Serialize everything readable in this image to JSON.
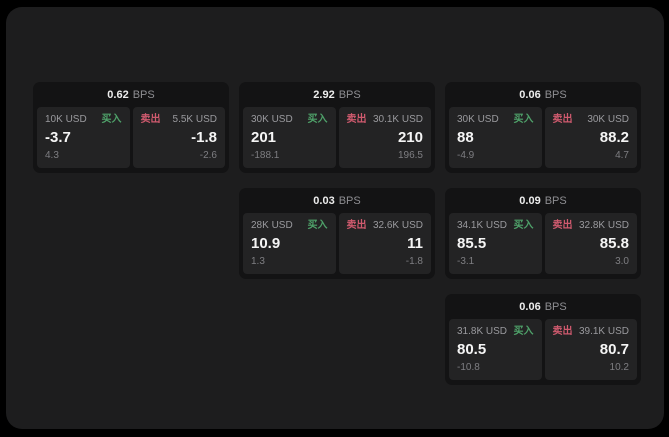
{
  "labels": {
    "bps_suffix": "BPS",
    "buy": "买入",
    "sell": "卖出"
  },
  "colors": {
    "buy": "#4fa26a",
    "sell": "#cf5a6e",
    "window_bg": "#1d1d1e",
    "card_bg": "#131314",
    "panel_bg": "#232324"
  },
  "cards": [
    {
      "row": 1,
      "col": 1,
      "bps": "0.62",
      "buy": {
        "amount": "10K USD",
        "value": "-3.7",
        "delta": "4.3"
      },
      "sell": {
        "amount": "5.5K USD",
        "value": "-1.8",
        "delta": "-2.6"
      }
    },
    {
      "row": 1,
      "col": 2,
      "bps": "2.92",
      "buy": {
        "amount": "30K USD",
        "value": "201",
        "delta": "-188.1"
      },
      "sell": {
        "amount": "30.1K USD",
        "value": "210",
        "delta": "196.5"
      }
    },
    {
      "row": 1,
      "col": 3,
      "bps": "0.06",
      "buy": {
        "amount": "30K USD",
        "value": "88",
        "delta": "-4.9"
      },
      "sell": {
        "amount": "30K USD",
        "value": "88.2",
        "delta": "4.7"
      }
    },
    {
      "row": 2,
      "col": 2,
      "bps": "0.03",
      "buy": {
        "amount": "28K USD",
        "value": "10.9",
        "delta": "1.3"
      },
      "sell": {
        "amount": "32.6K USD",
        "value": "11",
        "delta": "-1.8"
      }
    },
    {
      "row": 2,
      "col": 3,
      "bps": "0.09",
      "buy": {
        "amount": "34.1K USD",
        "value": "85.5",
        "delta": "-3.1"
      },
      "sell": {
        "amount": "32.8K USD",
        "value": "85.8",
        "delta": "3.0"
      }
    },
    {
      "row": 3,
      "col": 3,
      "bps": "0.06",
      "buy": {
        "amount": "31.8K USD",
        "value": "80.5",
        "delta": "-10.8"
      },
      "sell": {
        "amount": "39.1K USD",
        "value": "80.7",
        "delta": "10.2"
      }
    }
  ]
}
